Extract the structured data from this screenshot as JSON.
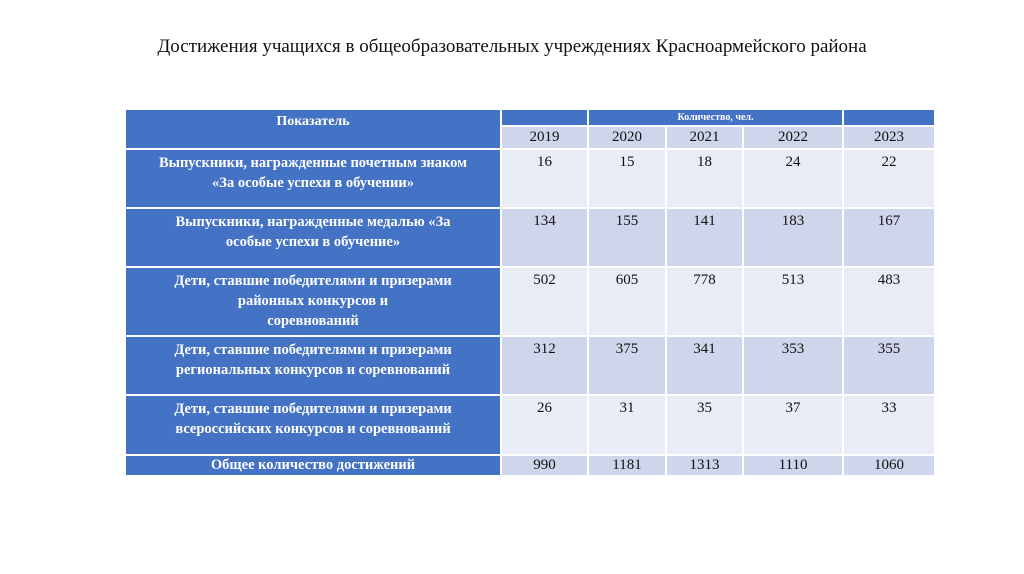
{
  "title": "Достижения учащихся в общеобразовательных учреждениях Красноармейского района",
  "table": {
    "header_label": "Показатель",
    "header_group": "Количество, чел.",
    "years": [
      "2019",
      "2020",
      "2021",
      "2022",
      "2023"
    ],
    "rows": [
      {
        "label": [
          "Выпускники, награжденные почетным знаком",
          "«За особые успехи в обучении»"
        ],
        "values": [
          "16",
          "15",
          "18",
          "24",
          "22"
        ]
      },
      {
        "label": [
          "Выпускники, награжденные медалью «За",
          "особые успехи в  обучение»"
        ],
        "values": [
          "134",
          "155",
          "141",
          "183",
          "167"
        ]
      },
      {
        "label": [
          "Дети, ставшие победителями и призерами",
          "районных конкурсов и",
          "соревнований"
        ],
        "values": [
          "502",
          "605",
          "778",
          "513",
          "483"
        ]
      },
      {
        "label": [
          "Дети, ставшие победителями и призерами",
          "региональных конкурсов и соревнований"
        ],
        "values": [
          "312",
          "375",
          "341",
          "353",
          "355"
        ]
      },
      {
        "label": [
          "Дети, ставшие победителями и призерами",
          "всероссийских конкурсов и соревнований"
        ],
        "values": [
          "26",
          "31",
          "35",
          "37",
          "33"
        ]
      }
    ],
    "total": {
      "label": "Общее количество достижений",
      "values": [
        "990",
        "1181",
        "1313",
        "1110",
        "1060"
      ]
    }
  }
}
